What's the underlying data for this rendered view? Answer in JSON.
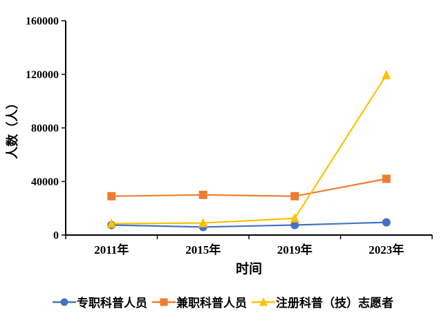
{
  "figure": {
    "background": "#ffffff",
    "axis_color": "#000000"
  },
  "chart_data": {
    "type": "line",
    "title": "",
    "xlabel": "时间",
    "ylabel": "人数（人）",
    "categories": [
      "2011年",
      "2015年",
      "2019年",
      "2023年"
    ],
    "series": [
      {
        "name": "专职科普人员",
        "marker": "circle",
        "color": "#4472C4",
        "values": [
          7500,
          6000,
          7500,
          9500
        ]
      },
      {
        "name": "兼职科普人员",
        "marker": "square",
        "color": "#ED7D31",
        "values": [
          29000,
          30000,
          29000,
          42000
        ]
      },
      {
        "name": "注册科普（技）志愿者",
        "marker": "triangle",
        "color": "#FFC000",
        "values": [
          8500,
          9000,
          12500,
          119500
        ]
      }
    ],
    "ylim": [
      0,
      160000
    ],
    "yticks": [
      0,
      40000,
      80000,
      120000,
      160000
    ],
    "grid": false,
    "legend_position": "bottom"
  }
}
